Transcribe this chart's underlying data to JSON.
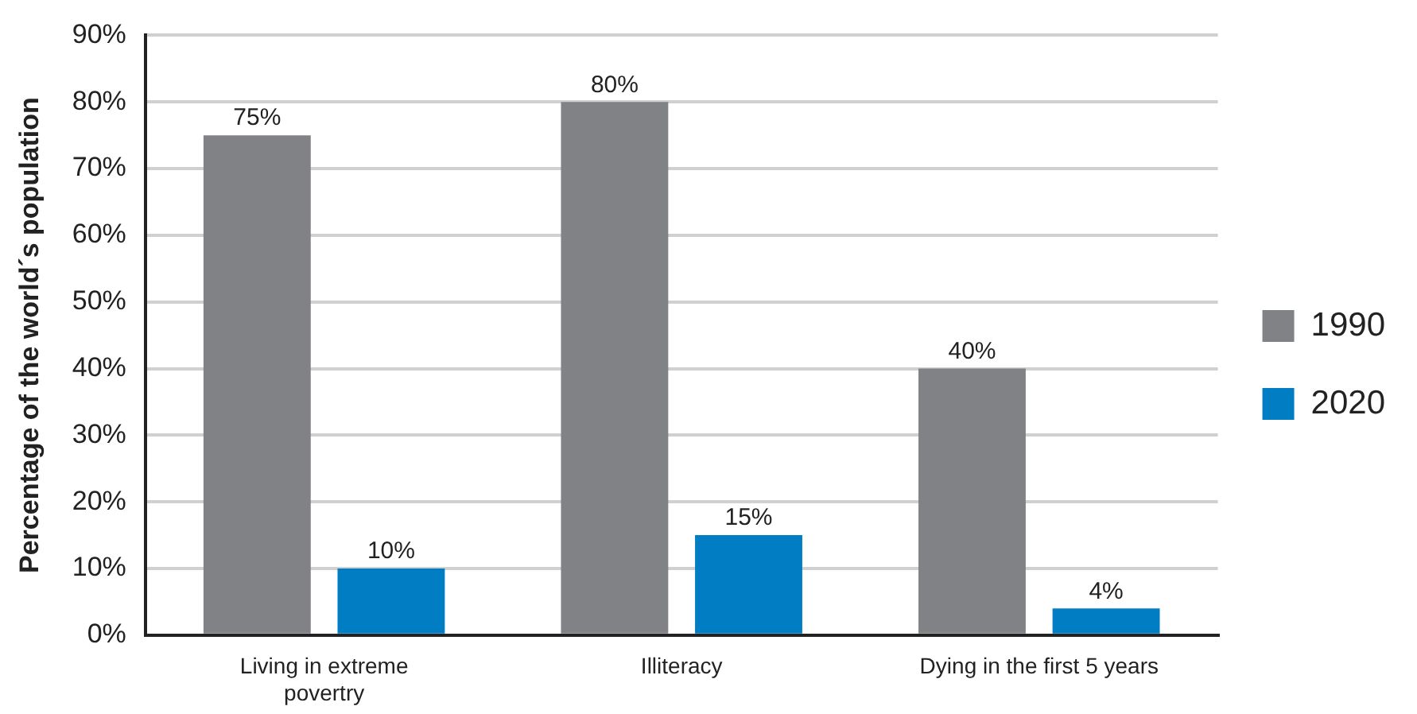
{
  "chart_data": {
    "type": "bar",
    "ylabel": "Percentage of the world´s population",
    "categories": [
      "Living in extreme\npovertry",
      "Illiteracy",
      "Dying in the first 5 years"
    ],
    "series": [
      {
        "name": "1990",
        "color": "#818285",
        "values": [
          75,
          80,
          40
        ],
        "value_labels": [
          "75%",
          "80%",
          "40%"
        ]
      },
      {
        "name": "2020",
        "color": "#007dc3",
        "values": [
          10,
          15,
          4
        ],
        "value_labels": [
          "10%",
          "15%",
          "4%"
        ]
      }
    ],
    "ylim": [
      0,
      90
    ],
    "yticks": [
      {
        "value": 0,
        "label": "0%"
      },
      {
        "value": 10,
        "label": "10%"
      },
      {
        "value": 20,
        "label": "20%"
      },
      {
        "value": 30,
        "label": "30%"
      },
      {
        "value": 40,
        "label": "40%"
      },
      {
        "value": 50,
        "label": "50%"
      },
      {
        "value": 60,
        "label": "60%"
      },
      {
        "value": 70,
        "label": "70%"
      },
      {
        "value": 80,
        "label": "80%"
      },
      {
        "value": 90,
        "label": "90%"
      }
    ],
    "grid": "y",
    "legend": "right"
  }
}
